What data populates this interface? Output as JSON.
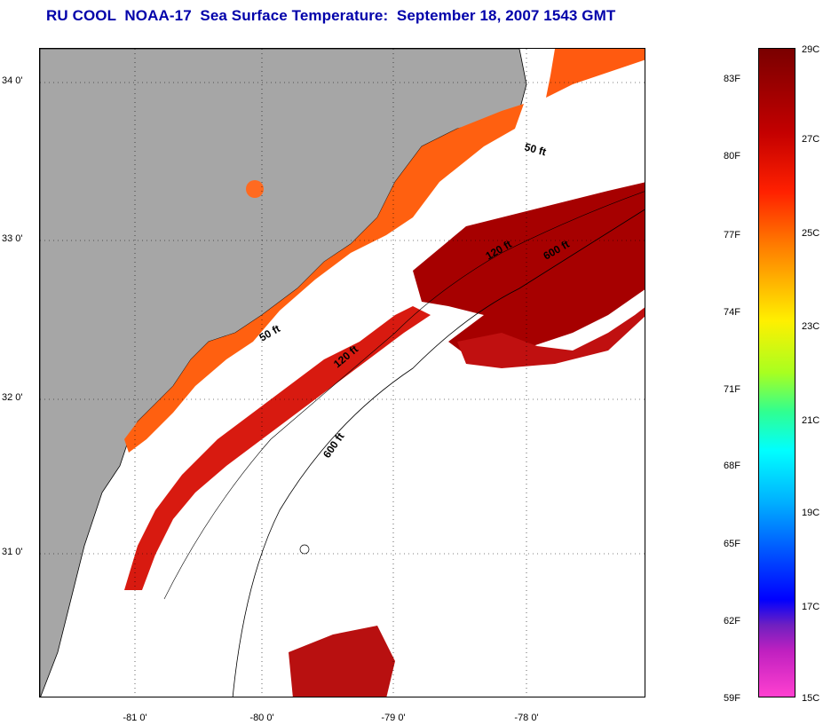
{
  "title": "RU COOL  NOAA-17  Sea Surface Temperature:  September 18, 2007 1543 GMT",
  "lat_labels": [
    "34 0'",
    "33 0'",
    "32 0'",
    "31 0'"
  ],
  "lon_labels": [
    "-81 0'",
    "-80 0'",
    "-79 0'",
    "-78 0'"
  ],
  "contours": {
    "c50_north": "50 ft",
    "c50_south": "50 ft",
    "c120_north": "120 ft",
    "c120_south": "120 ft",
    "c600_north": "600 ft",
    "c600_south": "600 ft"
  },
  "colorbar": {
    "fahrenheit": [
      "83F",
      "80F",
      "77F",
      "74F",
      "71F",
      "68F",
      "65F",
      "62F",
      "59F"
    ],
    "celsius": [
      "29C",
      "27C",
      "25C",
      "23C",
      "21C",
      "19C",
      "17C",
      "15C"
    ]
  },
  "colors": {
    "land": "#a6a6a6",
    "warm": "#ff6a10",
    "hot": "#d01010",
    "very_hot": "#a00000",
    "title": "#0000aa"
  }
}
